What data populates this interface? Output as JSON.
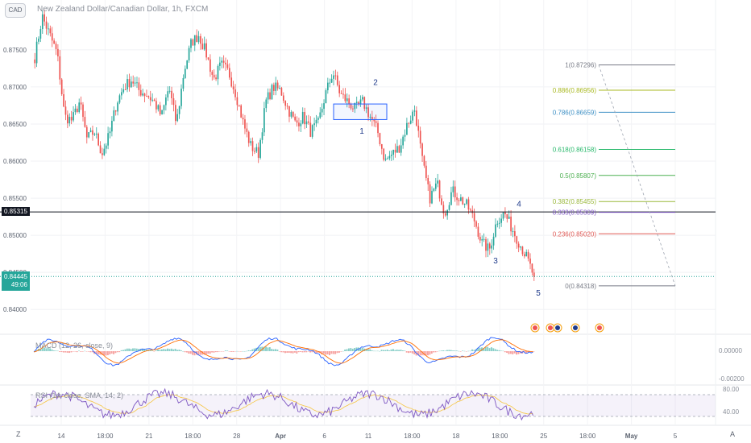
{
  "header": {
    "title": "New Zealand Dollar/Canadian Dollar, 1h, FXCM",
    "pair_badge": "CAD"
  },
  "price_tags": {
    "horizontal": {
      "label": "0.85315",
      "color": "#131722"
    },
    "current": {
      "price": "0.84445",
      "countdown": "49:06",
      "color": "#26a69a"
    }
  },
  "colors": {
    "up": "#26a69a",
    "down": "#ef5350",
    "macd": "#2962ff",
    "signal": "#ff6d00",
    "rsi": "#7e57c2",
    "rsi_ma": "#f5c542"
  },
  "indicators": {
    "macd": {
      "label": "MACD (12, 26, close, 9)",
      "ticks": [
        "0.00000",
        "-0.00200"
      ]
    },
    "rsi": {
      "label": "RSI (14, close, SMA, 14, 2)",
      "ticks": [
        "80.00",
        "40.00"
      ]
    }
  },
  "bottom_bar": {
    "left_icon": "zoom-icon",
    "right_label": "A"
  },
  "chart_data": {
    "type": "line",
    "title": "New Zealand Dollar/Canadian Dollar, 1h, FXCM",
    "y_ticks": [
      "0.87500",
      "0.87000",
      "0.86500",
      "0.86000",
      "0.85500",
      "0.85000",
      "0.84500",
      "0.84000"
    ],
    "y_values": [
      0.875,
      0.87,
      0.865,
      0.86,
      0.855,
      0.85,
      0.845,
      0.84
    ],
    "ylim": [
      0.8372,
      0.8815
    ],
    "x_ticks": [
      "14",
      "18:00",
      "21",
      "18:00",
      "28",
      "Apr",
      "6",
      "11",
      "18:00",
      "18",
      "18:00",
      "25",
      "18:00",
      "May",
      "5"
    ],
    "price_path": [
      0.874,
      0.8795,
      0.877,
      0.8745,
      0.866,
      0.8655,
      0.868,
      0.863,
      0.864,
      0.861,
      0.8635,
      0.868,
      0.87,
      0.871,
      0.8695,
      0.869,
      0.868,
      0.866,
      0.87,
      0.865,
      0.872,
      0.876,
      0.877,
      0.8745,
      0.871,
      0.873,
      0.872,
      0.869,
      0.865,
      0.862,
      0.861,
      0.868,
      0.87,
      0.8695,
      0.867,
      0.865,
      0.866,
      0.864,
      0.865,
      0.869,
      0.872,
      0.869,
      0.868,
      0.867,
      0.868,
      0.866,
      0.864,
      0.86,
      0.861,
      0.862,
      0.865,
      0.867,
      0.86,
      0.855,
      0.857,
      0.853,
      0.856,
      0.855,
      0.854,
      0.852,
      0.849,
      0.848,
      0.852,
      0.853,
      0.851,
      0.849,
      0.847,
      0.8444
    ],
    "wave_labels": [
      {
        "label": "1",
        "value": 0.864
      },
      {
        "label": "2",
        "value": 0.87
      },
      {
        "label": "3",
        "value": 0.8465
      },
      {
        "label": "4",
        "value": 0.8537
      },
      {
        "label": "5",
        "value": 0.8422
      }
    ],
    "fibonacci": [
      {
        "label": "1(0.87296)",
        "value": 0.87296,
        "color": "#787b86"
      },
      {
        "label": "0.886(0.86956)",
        "value": 0.86956,
        "color": "#a8b820"
      },
      {
        "label": "0.786(0.86659)",
        "value": 0.86659,
        "color": "#3d8fc4"
      },
      {
        "label": "0.618(0.86158)",
        "value": 0.86158,
        "color": "#26b86a"
      },
      {
        "label": "0.5(0.85807)",
        "value": 0.85807,
        "color": "#4caf50"
      },
      {
        "label": "0.382(0.85455)",
        "value": 0.85455,
        "color": "#9ab83a"
      },
      {
        "label": "0.333(0.85309)",
        "value": 0.85309,
        "color": "#7e57c2"
      },
      {
        "label": "0.236(0.85020)",
        "value": 0.8502,
        "color": "#e05a55"
      },
      {
        "label": "0(0.84318)",
        "value": 0.84318,
        "color": "#787b86"
      }
    ],
    "grid": true,
    "legend": "none"
  }
}
